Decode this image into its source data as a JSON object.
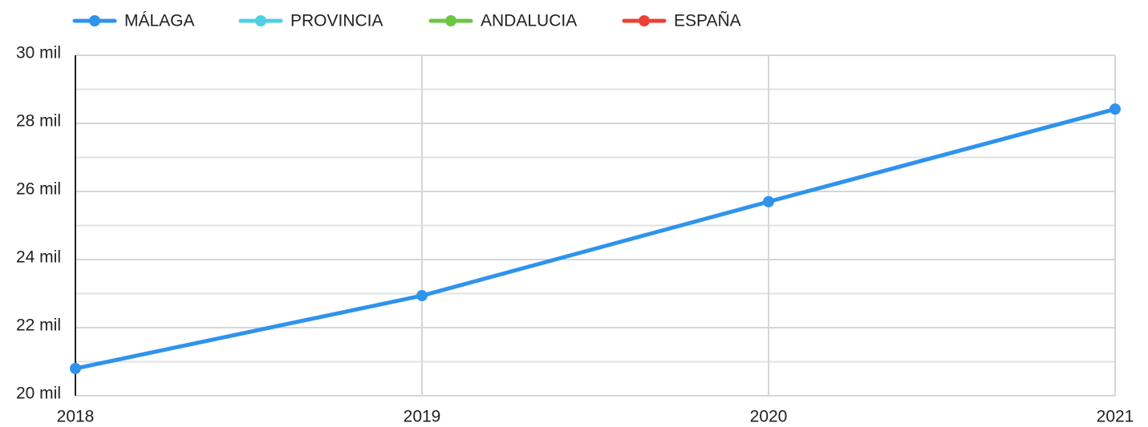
{
  "chart_data": {
    "type": "line",
    "x": [
      2018,
      2019,
      2020,
      2021
    ],
    "series": [
      {
        "name": "MÁLAGA",
        "color": "#2f93ec",
        "values": [
          20800,
          22940,
          25700,
          28420
        ]
      },
      {
        "name": "PROVINCIA",
        "color": "#4fd0e2",
        "values": [
          null,
          null,
          null,
          null
        ]
      },
      {
        "name": "ANDALUCIA",
        "color": "#6cc644",
        "values": [
          null,
          null,
          null,
          null
        ]
      },
      {
        "name": "ESPAÑA",
        "color": "#e94235",
        "values": [
          null,
          null,
          null,
          null
        ]
      }
    ],
    "xlim": [
      2018,
      2021
    ],
    "xticks": [
      2018,
      2019,
      2020,
      2021
    ],
    "ylim": [
      20000,
      30000
    ],
    "yticks": [
      {
        "value": 20000,
        "label": "20 mil"
      },
      {
        "value": 22000,
        "label": "22 mil"
      },
      {
        "value": 24000,
        "label": "24 mil"
      },
      {
        "value": 26000,
        "label": "26 mil"
      },
      {
        "value": 28000,
        "label": "28 mil"
      },
      {
        "value": 30000,
        "label": "30 mil"
      }
    ],
    "minor_yticks": [
      21000,
      23000,
      25000,
      27000,
      29000
    ],
    "grid": true,
    "legend": "top"
  }
}
